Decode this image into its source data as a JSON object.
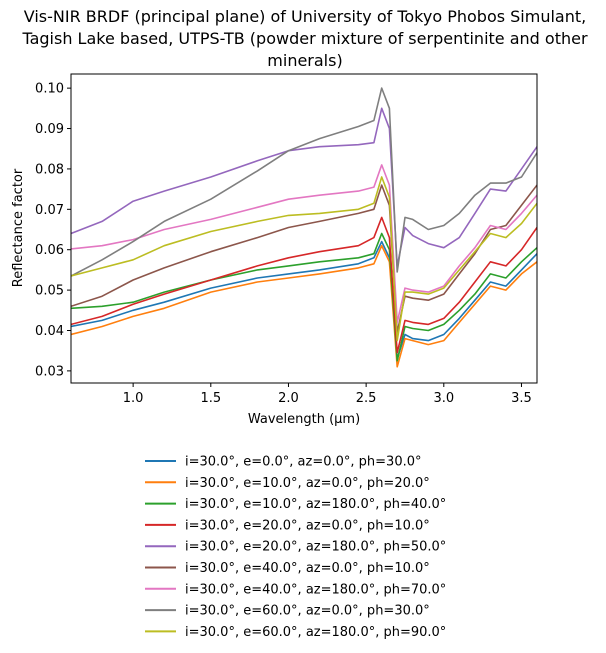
{
  "chart_data": {
    "type": "line",
    "title_lines": [
      "Vis-NIR BRDF (principal plane) of University of Tokyo Phobos Simulant,",
      "Tagish Lake based, UTPS-TB (powder mixture of serpentinite and other",
      "minerals)"
    ],
    "xlabel": "Wavelength (μm)",
    "ylabel": "Reflectance factor",
    "xlim": [
      0.6,
      3.6
    ],
    "ylim": [
      0.027,
      0.1035
    ],
    "xticks": [
      1.0,
      1.5,
      2.0,
      2.5,
      3.0,
      3.5
    ],
    "xtick_labels": [
      "1.0",
      "1.5",
      "2.0",
      "2.5",
      "3.0",
      "3.5"
    ],
    "yticks": [
      0.03,
      0.04,
      0.05,
      0.06,
      0.07,
      0.08,
      0.09,
      0.1
    ],
    "ytick_labels": [
      "0.03",
      "0.04",
      "0.05",
      "0.06",
      "0.07",
      "0.08",
      "0.09",
      "0.10"
    ],
    "grid": false,
    "legend_position": "below",
    "x": [
      0.6,
      0.8,
      1.0,
      1.2,
      1.5,
      1.8,
      2.0,
      2.2,
      2.45,
      2.55,
      2.6,
      2.65,
      2.7,
      2.75,
      2.8,
      2.9,
      3.0,
      3.1,
      3.2,
      3.3,
      3.4,
      3.5,
      3.6
    ],
    "series": [
      {
        "name": "i=30.0°, e=0.0°, az=0.0°, ph=30.0°",
        "color": "#1f77b4",
        "values": [
          0.041,
          0.0425,
          0.045,
          0.047,
          0.0505,
          0.053,
          0.054,
          0.055,
          0.0565,
          0.058,
          0.062,
          0.058,
          0.033,
          0.039,
          0.038,
          0.0375,
          0.039,
          0.043,
          0.0475,
          0.052,
          0.051,
          0.055,
          0.059
        ]
      },
      {
        "name": "i=30.0°, e=10.0°, az=0.0°, ph=20.0°",
        "color": "#ff7f0e",
        "values": [
          0.039,
          0.041,
          0.0435,
          0.0455,
          0.0495,
          0.052,
          0.053,
          0.054,
          0.0555,
          0.0565,
          0.061,
          0.057,
          0.031,
          0.038,
          0.0375,
          0.0365,
          0.0375,
          0.042,
          0.0465,
          0.051,
          0.05,
          0.054,
          0.057
        ]
      },
      {
        "name": "i=30.0°, e=10.0°, az=180.0°, ph=40.0°",
        "color": "#2ca02c",
        "values": [
          0.0455,
          0.046,
          0.047,
          0.0495,
          0.0525,
          0.055,
          0.056,
          0.057,
          0.058,
          0.059,
          0.064,
          0.06,
          0.0325,
          0.041,
          0.0405,
          0.04,
          0.0415,
          0.045,
          0.049,
          0.054,
          0.053,
          0.057,
          0.0605
        ]
      },
      {
        "name": "i=30.0°, e=20.0°, az=0.0°, ph=10.0°",
        "color": "#d62728",
        "values": [
          0.0415,
          0.0435,
          0.0465,
          0.049,
          0.0525,
          0.056,
          0.058,
          0.0595,
          0.061,
          0.063,
          0.068,
          0.063,
          0.0345,
          0.0425,
          0.042,
          0.0415,
          0.043,
          0.047,
          0.052,
          0.057,
          0.056,
          0.06,
          0.0655
        ]
      },
      {
        "name": "i=30.0°, e=20.0°, az=180.0°, ph=50.0°",
        "color": "#9467bd",
        "values": [
          0.064,
          0.067,
          0.072,
          0.0745,
          0.078,
          0.082,
          0.0845,
          0.0855,
          0.086,
          0.0865,
          0.095,
          0.09,
          0.056,
          0.0655,
          0.0635,
          0.0615,
          0.0605,
          0.063,
          0.069,
          0.075,
          0.0745,
          0.08,
          0.0855
        ]
      },
      {
        "name": "i=30.0°, e=40.0°, az=0.0°, ph=10.0°",
        "color": "#8c564b",
        "values": [
          0.046,
          0.0485,
          0.0525,
          0.0555,
          0.0595,
          0.063,
          0.0655,
          0.067,
          0.069,
          0.07,
          0.076,
          0.071,
          0.0395,
          0.0485,
          0.048,
          0.0475,
          0.049,
          0.054,
          0.059,
          0.065,
          0.066,
          0.071,
          0.076
        ]
      },
      {
        "name": "i=30.0°, e=40.0°, az=180.0°, ph=70.0°",
        "color": "#e377c2",
        "values": [
          0.0602,
          0.061,
          0.0625,
          0.065,
          0.0675,
          0.0705,
          0.0725,
          0.0735,
          0.0745,
          0.0755,
          0.081,
          0.076,
          0.042,
          0.0505,
          0.05,
          0.0495,
          0.051,
          0.056,
          0.0605,
          0.066,
          0.065,
          0.069,
          0.0735
        ]
      },
      {
        "name": "i=30.0°, e=60.0°, az=0.0°, ph=30.0°",
        "color": "#7f7f7f",
        "values": [
          0.0535,
          0.0575,
          0.062,
          0.067,
          0.0725,
          0.0795,
          0.0845,
          0.0875,
          0.0905,
          0.092,
          0.1,
          0.095,
          0.0545,
          0.068,
          0.0675,
          0.065,
          0.066,
          0.069,
          0.0735,
          0.0765,
          0.0765,
          0.078,
          0.084
        ]
      },
      {
        "name": "i=30.0°, e=60.0°, az=180.0°, ph=90.0°",
        "color": "#bcbd22",
        "values": [
          0.0535,
          0.0555,
          0.0575,
          0.061,
          0.0645,
          0.067,
          0.0685,
          0.069,
          0.07,
          0.0715,
          0.078,
          0.073,
          0.0375,
          0.0495,
          0.0495,
          0.049,
          0.0505,
          0.055,
          0.0595,
          0.064,
          0.063,
          0.0665,
          0.0715
        ]
      }
    ]
  }
}
